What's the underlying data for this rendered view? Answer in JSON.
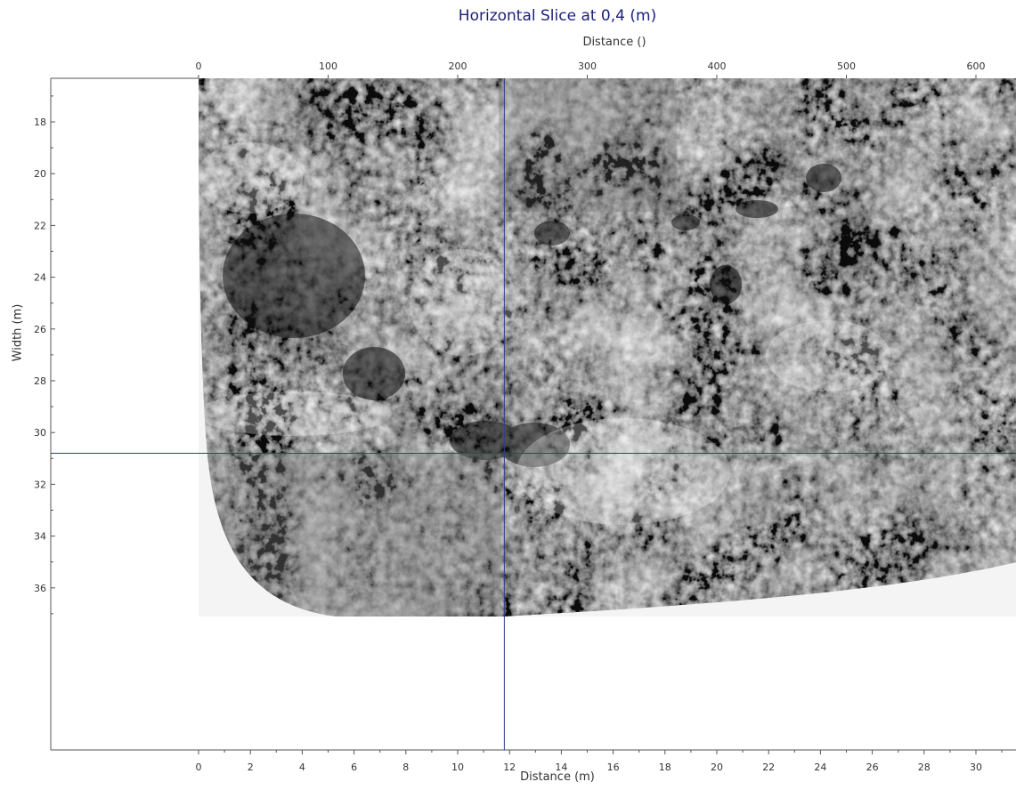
{
  "title": "Horizontal Slice at 0,4 (m)",
  "top_axis": {
    "label": "Distance ()",
    "ticks": [
      "0",
      "100",
      "200",
      "300",
      "400",
      "500",
      "600"
    ]
  },
  "bottom_axis": {
    "label": "Distance (m)",
    "ticks": [
      "0",
      "2",
      "4",
      "6",
      "8",
      "10",
      "12",
      "14",
      "16",
      "18",
      "20",
      "22",
      "24",
      "26",
      "28",
      "30"
    ]
  },
  "left_axis": {
    "label": "Width (m)",
    "ticks": [
      "18",
      "20",
      "22",
      "24",
      "26",
      "28",
      "30",
      "32",
      "34",
      "36"
    ]
  },
  "crosshair": {
    "distance_m": 11.8,
    "width_m": 30.8,
    "color": "#2a3f8f"
  },
  "colors": {
    "title": "#1a1f7a",
    "slice_background": "#f4f4f4",
    "radargram_gray": "#8a8a8a"
  }
}
